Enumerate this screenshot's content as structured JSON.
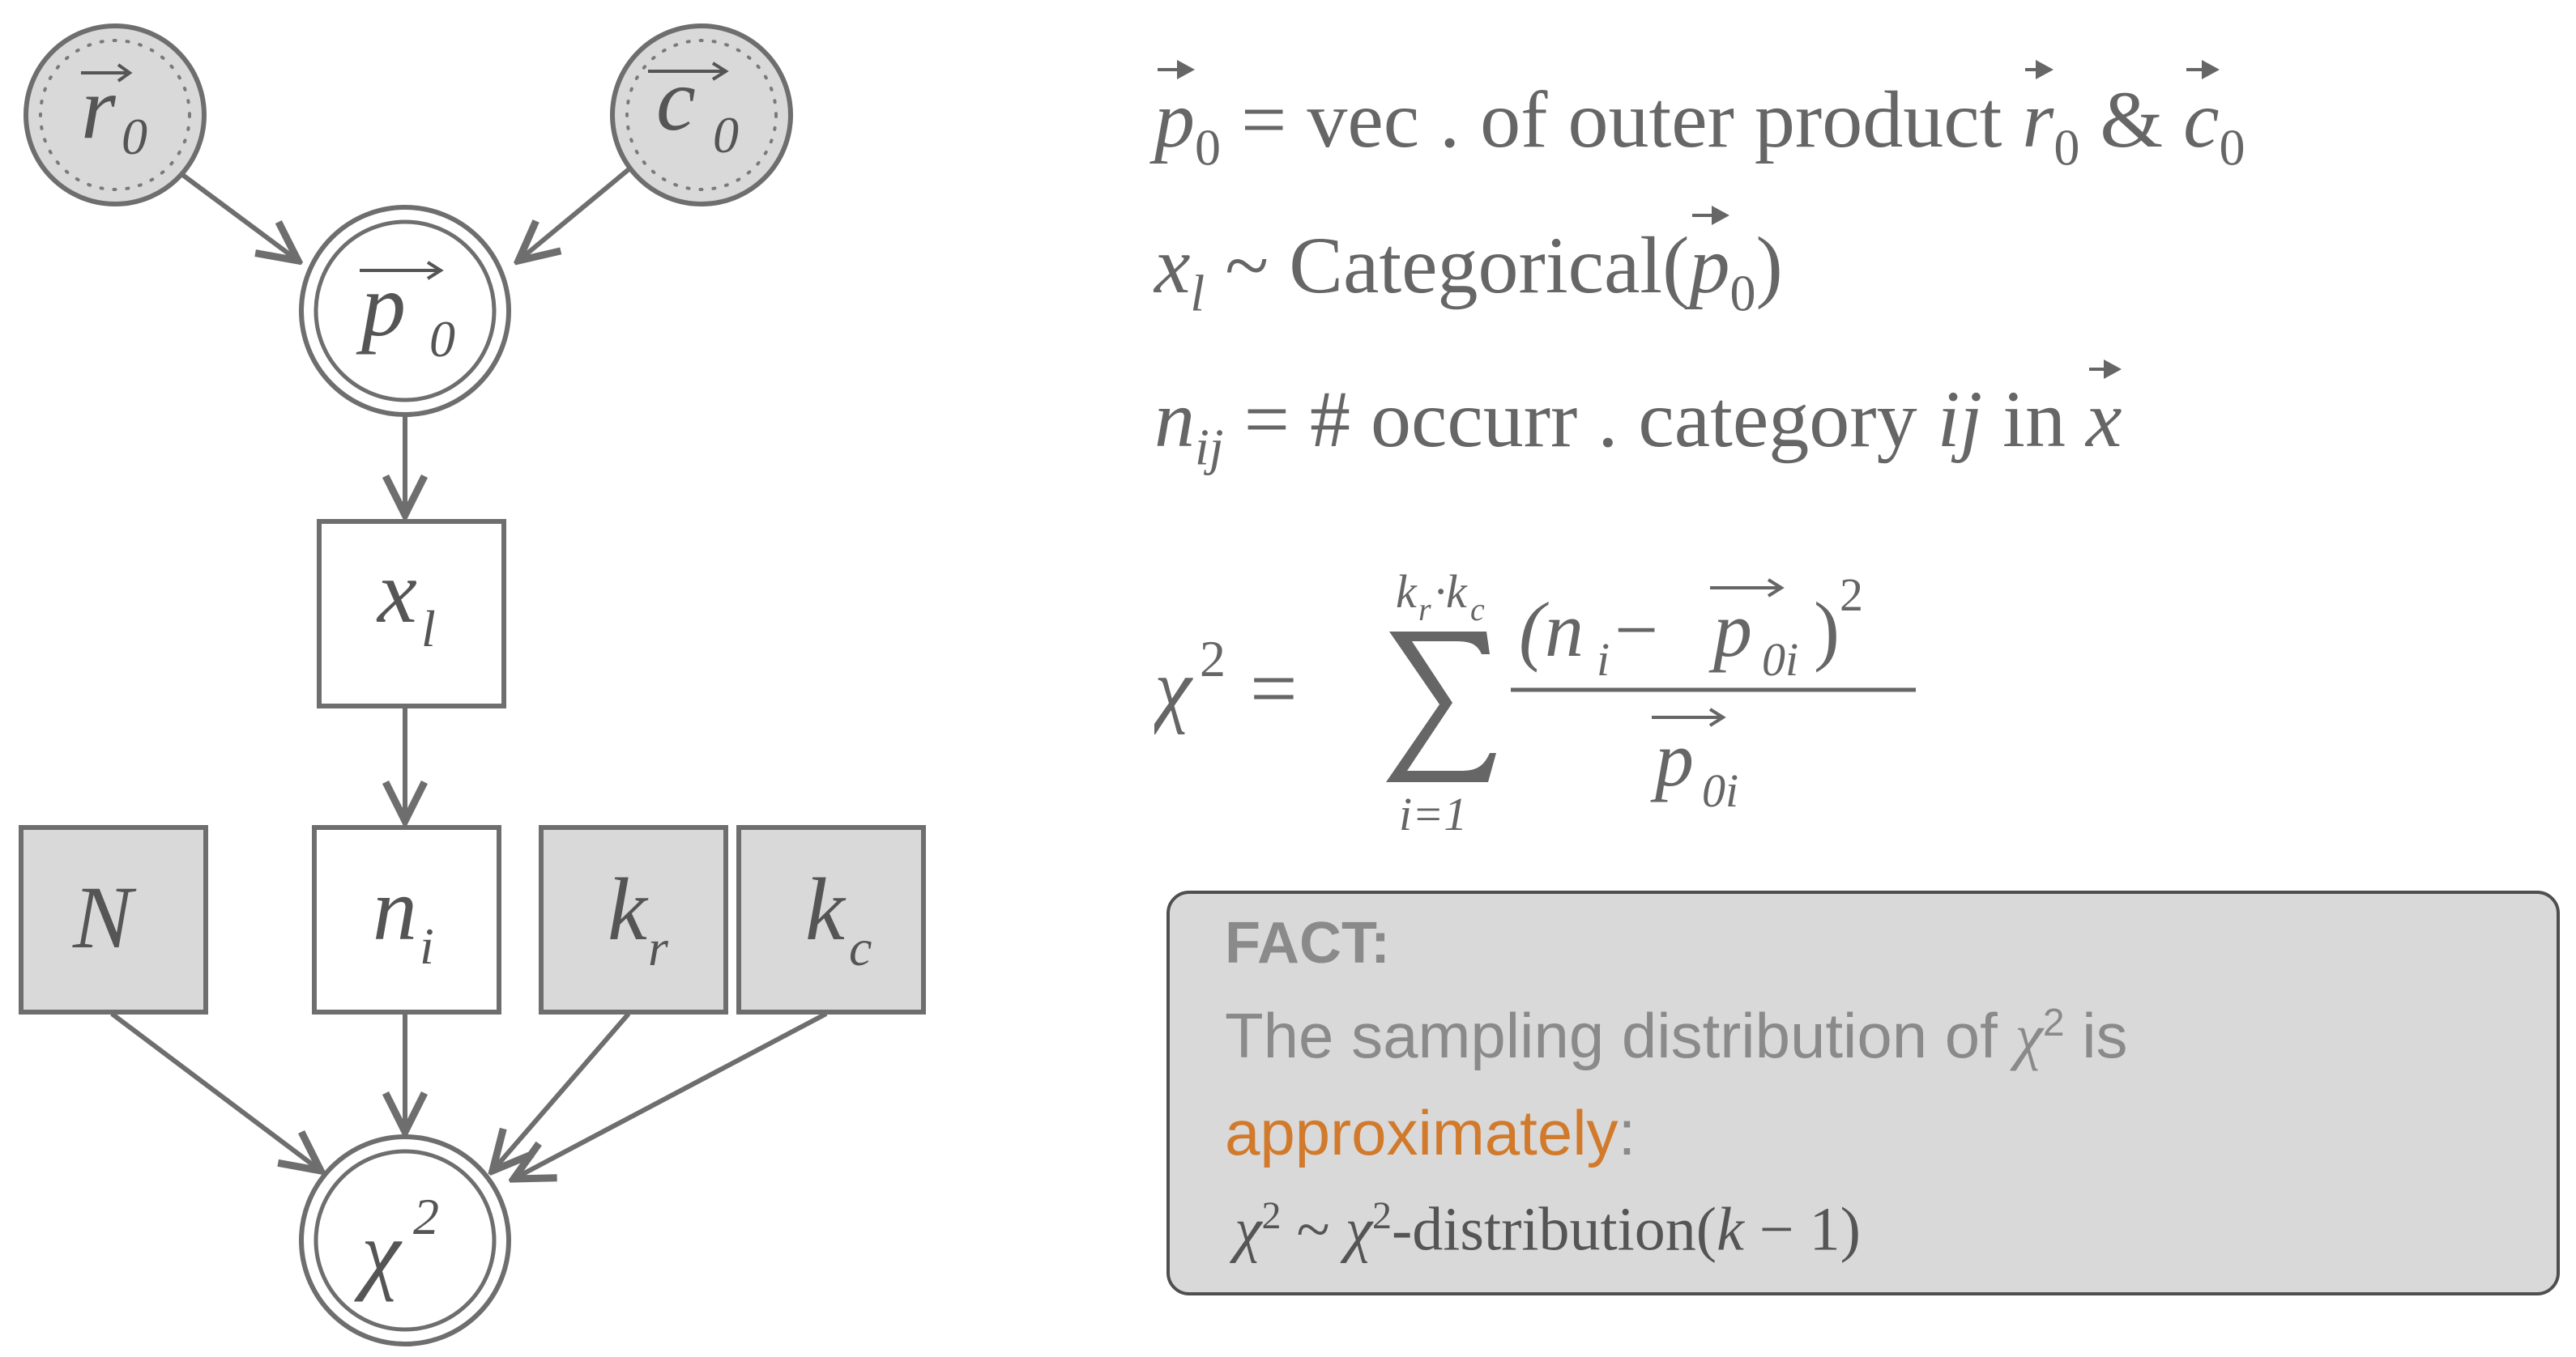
{
  "nodes": {
    "r0": {
      "base": "r",
      "sub": "0"
    },
    "c0": {
      "base": "c",
      "sub": "0"
    },
    "p0": {
      "base": "p",
      "sub": "0"
    },
    "xl": {
      "base": "x",
      "sub": "l"
    },
    "ni": {
      "base": "n",
      "sub": "i"
    },
    "N": {
      "base": "N",
      "sub": ""
    },
    "kr": {
      "base": "k",
      "sub": "r"
    },
    "kc": {
      "base": "k",
      "sub": "c"
    },
    "chi": {
      "base": "χ",
      "sup": "2"
    }
  },
  "equations": {
    "eq1": {
      "lhs_base": "p",
      "lhs_sub": "0",
      "mid": " = vec . of outer product ",
      "r": "r",
      "r_sub": "0",
      "amp": " & ",
      "c": "c",
      "c_sub": "0"
    },
    "eq2": {
      "x": "x",
      "x_sub": "l",
      "tilde": " ~ Categorical(",
      "p": "p",
      "p_sub": "0",
      "close": ")"
    },
    "eq3": {
      "n": "n",
      "n_sub": "ij",
      "mid": " = # occurr . category ",
      "ij": "ij",
      "in": " in ",
      "x": "x"
    },
    "eq4": {
      "chi": "χ",
      "sup2": "2",
      "eq": "=",
      "sum_upper_k1": "k",
      "sum_upper_r": "r",
      "sum_dot": "·",
      "sum_upper_k2": "k",
      "sum_upper_c": "c",
      "sum_lower": "i=1",
      "num_open": "(n",
      "num_i": "i",
      "num_minus": " − ",
      "num_p": "p",
      "num_p_sub": "0i",
      "num_close": ")",
      "num_sup": "2",
      "den_p": "p",
      "den_sub": "0i"
    }
  },
  "fact": {
    "title": "FACT:",
    "line1_pre": "The sampling distribution of ",
    "line1_chi": "χ",
    "line1_sup": "2",
    "line1_post": " is",
    "line2_accent": "approximately",
    "line2_post": ":",
    "formula_chi": "χ",
    "formula_sup": "2",
    "formula_tilde": " ~ ",
    "formula_chi2": "χ",
    "formula_sup2": "2",
    "formula_rest": "-distribution(",
    "formula_k": "k",
    "formula_end": " − 1)"
  },
  "colors": {
    "node_fill_gray": "#d9d9d9",
    "edge": "#6e6e6e",
    "accent": "#d27a2c"
  }
}
